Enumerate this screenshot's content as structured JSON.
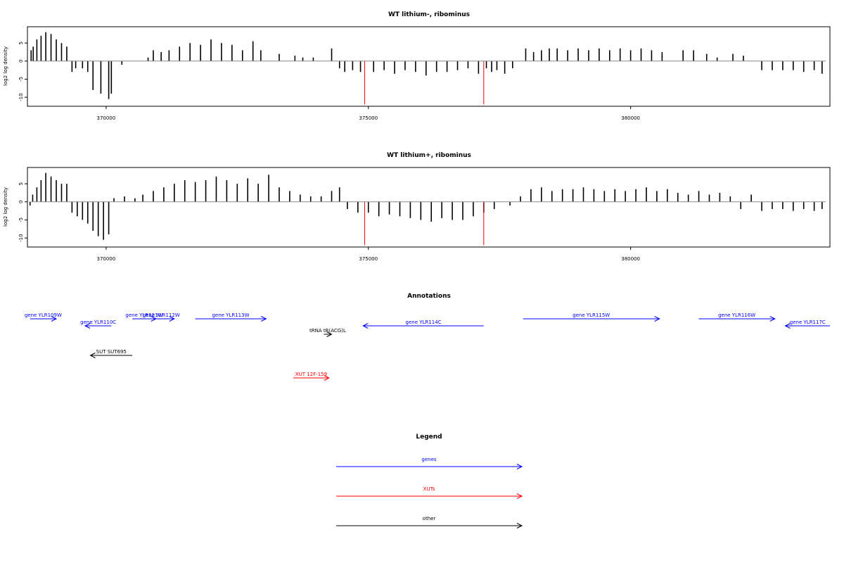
{
  "chart_data": [
    {
      "type": "bar",
      "title": "WT lithium-, ribominus",
      "ylabel": "log2 log density",
      "xlabel": "",
      "xlim": [
        368500,
        383800
      ],
      "ylim": [
        -12.5,
        9.5
      ],
      "yticks": [
        -10,
        -5,
        0,
        5
      ],
      "xticks": [
        370000,
        375000,
        380000
      ],
      "xtick_labels": [
        "370000",
        "375000",
        "380000"
      ],
      "ytick_labels": [
        "-10",
        "-5",
        "0",
        "5"
      ],
      "grid": false,
      "colors": {
        "bars": "#000000",
        "markers": "#ff0000",
        "baseline": "#888888"
      },
      "markers": [
        {
          "x": 374930,
          "values": [
            0,
            -12
          ]
        },
        {
          "x": 377200,
          "values": [
            0,
            -12
          ]
        }
      ],
      "x": [
        368570,
        368610,
        368680,
        368760,
        368850,
        368950,
        369050,
        369150,
        369250,
        369350,
        369420,
        369550,
        369650,
        369750,
        369900,
        370050,
        370100,
        370300,
        370800,
        370900,
        371050,
        371200,
        371400,
        371600,
        371800,
        372000,
        372200,
        372400,
        372600,
        372800,
        372950,
        373300,
        373600,
        373750,
        373950,
        374300,
        374450,
        374550,
        374700,
        374850,
        375100,
        375300,
        375500,
        375700,
        375900,
        376100,
        376300,
        376500,
        376700,
        376900,
        377100,
        377250,
        377350,
        377450,
        377600,
        377750,
        378000,
        378150,
        378300,
        378450,
        378600,
        378800,
        379000,
        379200,
        379400,
        379600,
        379800,
        380000,
        380200,
        380400,
        380600,
        381000,
        381200,
        381450,
        381650,
        381950,
        382150,
        382500,
        382700,
        382900,
        383100,
        383300,
        383500,
        383650
      ],
      "values": [
        3,
        4,
        6,
        7,
        8,
        7.5,
        6,
        5,
        4,
        -3,
        -2,
        -2,
        -3,
        -8,
        -9,
        -10.5,
        -9,
        -1,
        1,
        3,
        2.5,
        3,
        4,
        5,
        4.5,
        6,
        5,
        4.5,
        3,
        5.5,
        3,
        2,
        1.5,
        1,
        1,
        3.5,
        -2,
        -3,
        -2.5,
        -3,
        -3,
        -2.5,
        -3.5,
        -2.5,
        -3,
        -4,
        -3,
        -3,
        -2.5,
        -2,
        -3.5,
        -2,
        -3,
        -2.5,
        -3.5,
        -2,
        3.5,
        2.5,
        3,
        3.5,
        3.5,
        3,
        3.5,
        3,
        3.5,
        3,
        3.5,
        3,
        3.5,
        3,
        2.5,
        3,
        3,
        2,
        1,
        2,
        1.5,
        -2.5,
        -2.5,
        -2.5,
        -2.5,
        -3,
        -2.5,
        -3.5
      ]
    },
    {
      "type": "bar",
      "title": "WT lithium+, ribominus",
      "ylabel": "log2 log density",
      "xlabel": "",
      "xlim": [
        368500,
        383800
      ],
      "ylim": [
        -12.5,
        9.5
      ],
      "yticks": [
        -10,
        -5,
        0,
        5
      ],
      "xticks": [
        370000,
        375000,
        380000
      ],
      "xtick_labels": [
        "370000",
        "375000",
        "380000"
      ],
      "ytick_labels": [
        "-10",
        "-5",
        "0",
        "5"
      ],
      "grid": false,
      "colors": {
        "bars": "#000000",
        "markers": "#ff0000",
        "baseline": "#888888"
      },
      "markers": [
        {
          "x": 374930,
          "values": [
            0,
            -12
          ]
        },
        {
          "x": 377200,
          "values": [
            0,
            -12
          ]
        }
      ],
      "x": [
        368550,
        368600,
        368680,
        368760,
        368850,
        368950,
        369050,
        369150,
        369250,
        369350,
        369450,
        369550,
        369650,
        369750,
        369850,
        369950,
        370050,
        370150,
        370350,
        370550,
        370700,
        370900,
        371100,
        371300,
        371500,
        371700,
        371900,
        372100,
        372300,
        372500,
        372700,
        372900,
        373100,
        373300,
        373500,
        373700,
        373900,
        374100,
        374300,
        374450,
        374600,
        374800,
        375000,
        375200,
        375400,
        375600,
        375800,
        376000,
        376200,
        376400,
        376600,
        376800,
        377000,
        377200,
        377400,
        377700,
        377900,
        378100,
        378300,
        378500,
        378700,
        378900,
        379100,
        379300,
        379500,
        379700,
        379900,
        380100,
        380300,
        380500,
        380700,
        380900,
        381100,
        381300,
        381500,
        381700,
        381900,
        382100,
        382300,
        382500,
        382700,
        382900,
        383100,
        383300,
        383500,
        383650
      ],
      "values": [
        -1,
        2,
        4,
        6,
        8,
        7,
        6,
        5,
        5,
        -3,
        -4,
        -5,
        -6,
        -8,
        -9.5,
        -10.5,
        -9,
        1,
        1.5,
        1,
        2,
        3,
        4,
        5,
        6,
        5.5,
        6,
        7,
        6,
        5,
        6.5,
        5,
        7.5,
        4,
        3,
        2,
        1.5,
        1.5,
        3,
        4,
        -2,
        -3,
        -3,
        -4,
        -3.5,
        -4,
        -4.5,
        -5,
        -5.5,
        -4.5,
        -5,
        -5,
        -4,
        -3,
        -2,
        -1,
        1.5,
        3.5,
        4,
        3,
        3.5,
        3.5,
        4,
        3.5,
        3,
        3.5,
        3,
        3.5,
        4,
        3,
        3.5,
        2.5,
        2,
        3,
        2,
        2.5,
        1.5,
        -2,
        2,
        -2.5,
        -2,
        -2,
        -2.5,
        -2,
        -2.5,
        -2
      ]
    }
  ],
  "annotations": {
    "title": "Annotations",
    "items": [
      {
        "label": "gene YLR109W",
        "category": "genes",
        "color": "#0000ff",
        "start": 368550,
        "end": 369050,
        "direction": "right",
        "row": 1
      },
      {
        "label": "gene YLR110C",
        "category": "genes",
        "color": "#0000ff",
        "start": 369600,
        "end": 370100,
        "direction": "left",
        "row": 2
      },
      {
        "label": "gene YLR111W",
        "category": "genes",
        "color": "#0000ff",
        "start": 370500,
        "end": 370950,
        "direction": "right",
        "row": 1
      },
      {
        "label": "gene YLR112W",
        "category": "genes",
        "color": "#0000ff",
        "start": 370800,
        "end": 371300,
        "direction": "right",
        "row": 1
      },
      {
        "label": "gene YLR113W",
        "category": "genes",
        "color": "#0000ff",
        "start": 371700,
        "end": 373050,
        "direction": "right",
        "row": 1
      },
      {
        "label": "tRNA tR(ACG)L",
        "category": "other",
        "color": "#000000",
        "start": 374150,
        "end": 374300,
        "direction": "right",
        "row": 3
      },
      {
        "label": "gene YLR114C",
        "category": "genes",
        "color": "#0000ff",
        "start": 374900,
        "end": 377200,
        "direction": "left",
        "row": 2
      },
      {
        "label": "gene YLR115W",
        "category": "genes",
        "color": "#0000ff",
        "start": 377950,
        "end": 380550,
        "direction": "right",
        "row": 1
      },
      {
        "label": "gene YLR116W",
        "category": "genes",
        "color": "#0000ff",
        "start": 381300,
        "end": 382750,
        "direction": "right",
        "row": 1
      },
      {
        "label": "gene YLR117C",
        "category": "genes",
        "color": "#0000ff",
        "start": 382950,
        "end": 384700,
        "direction": "left",
        "row": 2
      },
      {
        "label": "SUT SUT695",
        "category": "other",
        "color": "#000000",
        "start": 369700,
        "end": 370500,
        "direction": "left",
        "row": 4
      },
      {
        "label": "XUT 12F-159",
        "category": "XUTs",
        "color": "#ff0000",
        "start": 373570,
        "end": 374250,
        "direction": "right",
        "row": 5
      }
    ]
  },
  "legend": {
    "title": "Legend",
    "items": [
      {
        "label": "genes",
        "color": "#0000ff"
      },
      {
        "label": "XUTs",
        "color": "#ff0000"
      },
      {
        "label": "other",
        "color": "#000000"
      }
    ]
  }
}
